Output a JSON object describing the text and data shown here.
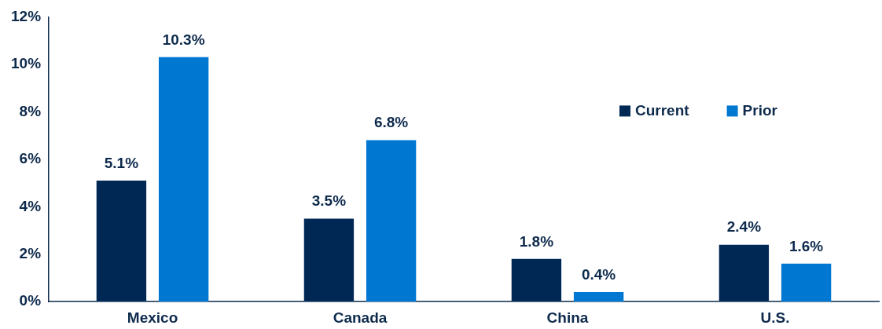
{
  "chart_data": {
    "type": "bar",
    "categories": [
      "Mexico",
      "Canada",
      "China",
      "U.S."
    ],
    "series": [
      {
        "name": "Current",
        "color": "#002855",
        "values": [
          5.1,
          3.5,
          1.8,
          2.4
        ],
        "value_labels": [
          "5.1%",
          "3.5%",
          "1.8%",
          "2.4%"
        ]
      },
      {
        "name": "Prior",
        "color": "#0077d1",
        "values": [
          10.3,
          6.8,
          0.4,
          1.6
        ],
        "value_labels": [
          "10.3%",
          "6.8%",
          "0.4%",
          "1.6%"
        ]
      }
    ],
    "ylim": [
      0,
      12
    ],
    "yticks": [
      {
        "value": 0,
        "label": "0%"
      },
      {
        "value": 2,
        "label": "2%"
      },
      {
        "value": 4,
        "label": "4%"
      },
      {
        "value": 6,
        "label": "6%"
      },
      {
        "value": 8,
        "label": "8%"
      },
      {
        "value": 10,
        "label": "10%"
      },
      {
        "value": 12,
        "label": "12%"
      }
    ],
    "grid": false,
    "legend": "right"
  }
}
